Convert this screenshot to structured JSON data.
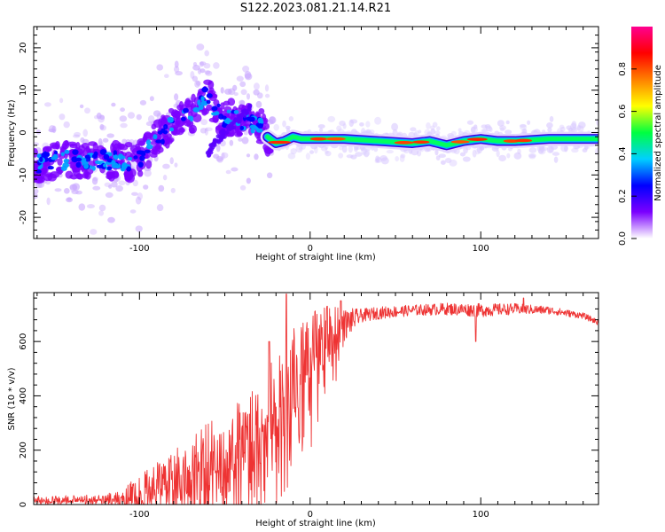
{
  "figure_title": "S122.2023.081.21.14.R21",
  "chart_data": [
    {
      "type": "heatmap",
      "xlabel": "Height of straight line (km)",
      "ylabel": "Frequency (Hz)",
      "xlim": [
        -162,
        169
      ],
      "ylim": [
        -25,
        25
      ],
      "x_ticks": [
        -100,
        0,
        100
      ],
      "y_ticks": [
        -20,
        -10,
        0,
        10,
        20
      ],
      "colorbar": {
        "label": "Normalized spectral amplitude",
        "range": [
          0.0,
          1.0
        ],
        "ticks": [
          "0.0",
          "0.2",
          "0.4",
          "0.6",
          "0.8"
        ],
        "colors": [
          "#ffffff",
          "#7b00ff",
          "#0000ff",
          "#00d0ff",
          "#00ff40",
          "#ffff00",
          "#ff8000",
          "#ff0000",
          "#ff0090"
        ]
      },
      "ridge": {
        "x": [
          -162,
          -150,
          -140,
          -130,
          -120,
          -110,
          -100,
          -95,
          -90,
          -85,
          -80,
          -75,
          -70,
          -65,
          -60,
          -55,
          -50,
          -45,
          -40,
          -35,
          -30,
          -25,
          -20,
          -15,
          -10,
          -5,
          0,
          10,
          20,
          40,
          60,
          70,
          80,
          85,
          90,
          100,
          110,
          120,
          140,
          169
        ],
        "y": [
          -7.5,
          -6.5,
          -6.5,
          -6.5,
          -6.5,
          -7,
          -6.5,
          -4,
          -1.5,
          0,
          2,
          3,
          4,
          7,
          9,
          5,
          3,
          3.5,
          3,
          2.5,
          2,
          -1,
          -2.5,
          -2,
          -1,
          -1.5,
          -1.5,
          -1.5,
          -1.5,
          -2,
          -2.5,
          -2,
          -3,
          -2.5,
          -2,
          -1.5,
          -2,
          -2,
          -1.5,
          -1.5
        ]
      },
      "secondary_ridge": {
        "x": [
          -60,
          -55,
          -50,
          -45,
          -40,
          -35
        ],
        "y": [
          -5,
          -2,
          0,
          2,
          4,
          6
        ]
      }
    },
    {
      "type": "line",
      "xlabel": "Height of straight line (km)",
      "ylabel": "SNR (10 * v/v)",
      "xlim": [
        -162,
        169
      ],
      "ylim": [
        0,
        780
      ],
      "x_ticks": [
        -100,
        0,
        100
      ],
      "y_ticks": [
        0,
        200,
        400,
        600
      ],
      "color": "#ee3333",
      "envelope": {
        "x": [
          -162,
          -140,
          -120,
          -110,
          -100,
          -90,
          -80,
          -70,
          -60,
          -50,
          -40,
          -30,
          -25,
          -20,
          -15,
          -10,
          -5,
          0,
          5,
          10,
          15,
          20,
          25,
          30,
          40,
          60,
          80,
          100,
          120,
          140,
          160,
          169
        ],
        "y": [
          18,
          20,
          22,
          28,
          45,
          80,
          110,
          140,
          170,
          200,
          240,
          280,
          330,
          380,
          430,
          470,
          500,
          540,
          580,
          610,
          640,
          660,
          680,
          695,
          705,
          715,
          720,
          715,
          720,
          715,
          695,
          670
        ]
      },
      "noise_amplitude": {
        "x": [
          -162,
          -120,
          -100,
          -80,
          -60,
          -40,
          -20,
          0,
          20,
          30,
          60,
          100,
          140,
          169
        ],
        "y": [
          12,
          15,
          60,
          100,
          130,
          150,
          180,
          170,
          60,
          25,
          20,
          25,
          15,
          10
        ]
      },
      "peaks": [
        {
          "x": -118,
          "y": 2
        },
        {
          "x": -24,
          "y": 600
        },
        {
          "x": -14,
          "y": 775
        },
        {
          "x": 10,
          "y": 730
        },
        {
          "x": 18,
          "y": 750
        },
        {
          "x": 97,
          "y": 600
        },
        {
          "x": 125,
          "y": 760
        }
      ]
    }
  ]
}
